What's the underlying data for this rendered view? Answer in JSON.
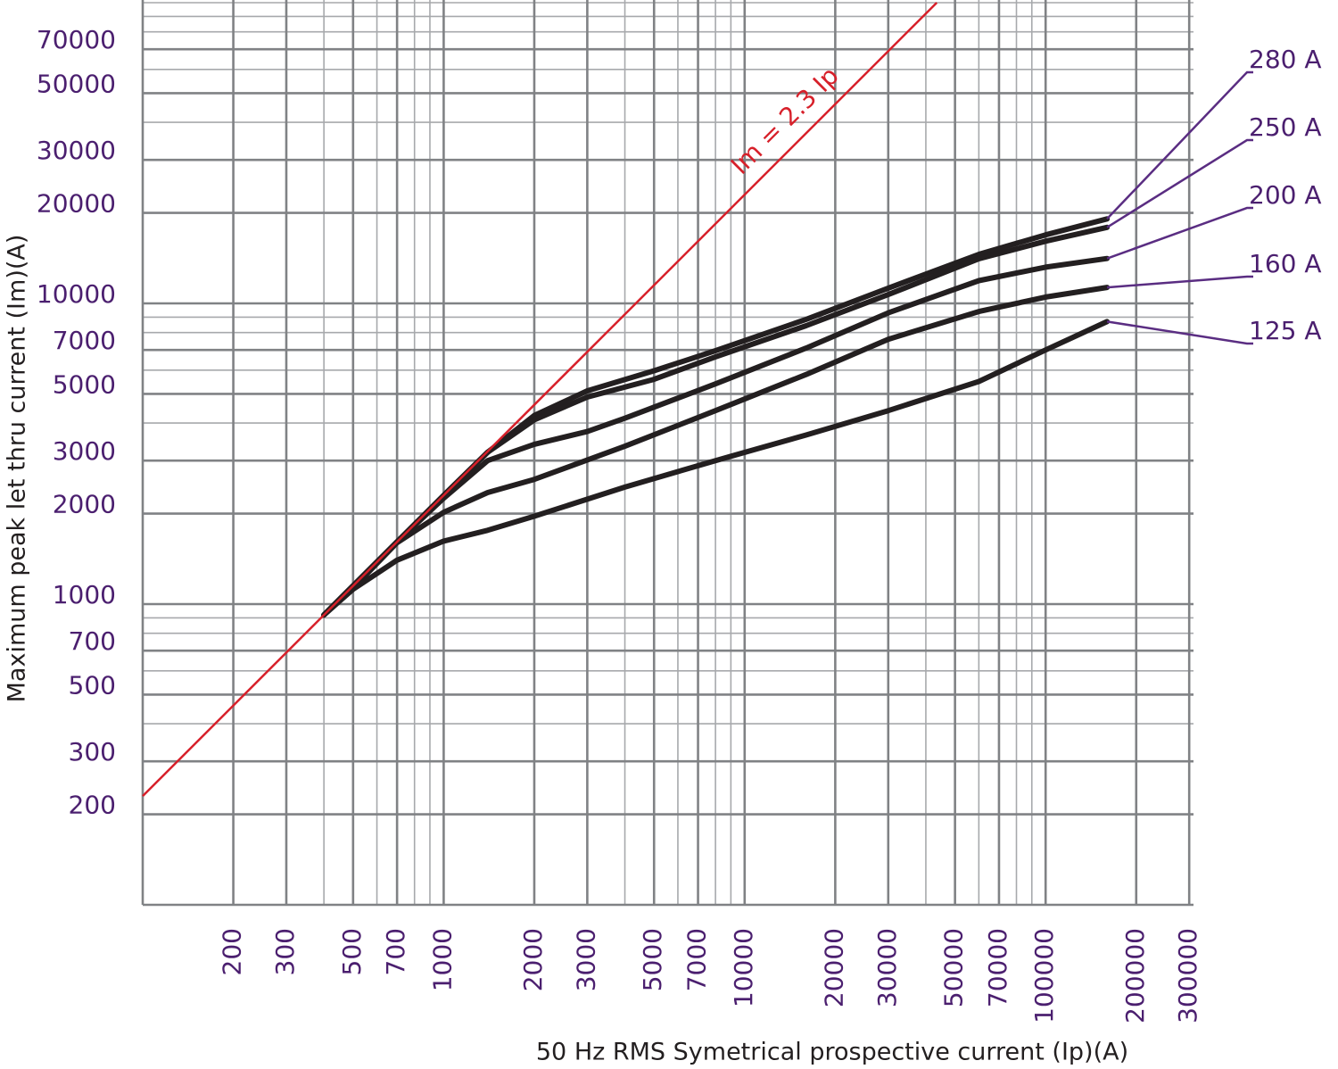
{
  "chart_data": {
    "type": "line",
    "x_label": "50 Hz RMS Symetrical prospective current (Ip)(A)",
    "y_label": "Maximum peak let thru current (Im)(A)",
    "xscale": "log",
    "yscale": "log",
    "grid": true,
    "xlim": [
      100,
      310000
    ],
    "ylim": [
      100,
      100000
    ],
    "xticks": [
      200,
      300,
      500,
      700,
      1000,
      2000,
      3000,
      5000,
      7000,
      10000,
      20000,
      30000,
      50000,
      70000,
      100000,
      200000,
      300000
    ],
    "yticks": [
      200,
      300,
      500,
      700,
      1000,
      2000,
      3000,
      5000,
      7000,
      10000,
      20000,
      30000,
      50000,
      70000
    ],
    "reference_line": {
      "label": "Im = 2.3 Ip",
      "color": "#d7202a",
      "x": [
        100,
        43478
      ],
      "values": [
        230,
        100000
      ]
    },
    "series": [
      {
        "name": "280 A",
        "color": "#231f20",
        "x": [
          400,
          500,
          700,
          1000,
          1400,
          2000,
          3000,
          5000,
          8000,
          16000,
          30000,
          60000,
          100000,
          160000
        ],
        "values": [
          920,
          1150,
          1610,
          2300,
          3200,
          4240,
          5120,
          5970,
          6960,
          8850,
          11240,
          14560,
          16900,
          19100
        ]
      },
      {
        "name": "250 A",
        "color": "#231f20",
        "x": [
          400,
          500,
          700,
          1000,
          1400,
          2000,
          3000,
          5000,
          8000,
          16000,
          30000,
          60000,
          100000,
          160000
        ],
        "values": [
          920,
          1150,
          1610,
          2300,
          3200,
          4100,
          4880,
          5590,
          6640,
          8430,
          10700,
          14070,
          16100,
          17900
        ]
      },
      {
        "name": "200 A",
        "color": "#231f20",
        "x": [
          400,
          500,
          700,
          1000,
          1400,
          2000,
          3000,
          4000,
          8000,
          16000,
          30000,
          60000,
          100000,
          160000
        ],
        "values": [
          920,
          1150,
          1610,
          2250,
          3000,
          3400,
          3750,
          4150,
          5400,
          7100,
          9300,
          11900,
          13200,
          14100
        ]
      },
      {
        "name": "160 A",
        "color": "#231f20",
        "x": [
          400,
          500,
          700,
          1000,
          1400,
          2000,
          4000,
          8000,
          16000,
          30000,
          60000,
          100000,
          160000
        ],
        "values": [
          920,
          1130,
          1600,
          2020,
          2350,
          2600,
          3350,
          4400,
          5800,
          7600,
          9400,
          10500,
          11300
        ]
      },
      {
        "name": "125 A",
        "color": "#231f20",
        "x": [
          400,
          500,
          700,
          1000,
          1400,
          2000,
          4000,
          8000,
          16000,
          30000,
          60000,
          100000,
          160000
        ],
        "values": [
          920,
          1120,
          1400,
          1620,
          1760,
          1960,
          2450,
          3000,
          3650,
          4400,
          5500,
          7000,
          8700
        ]
      }
    ]
  }
}
